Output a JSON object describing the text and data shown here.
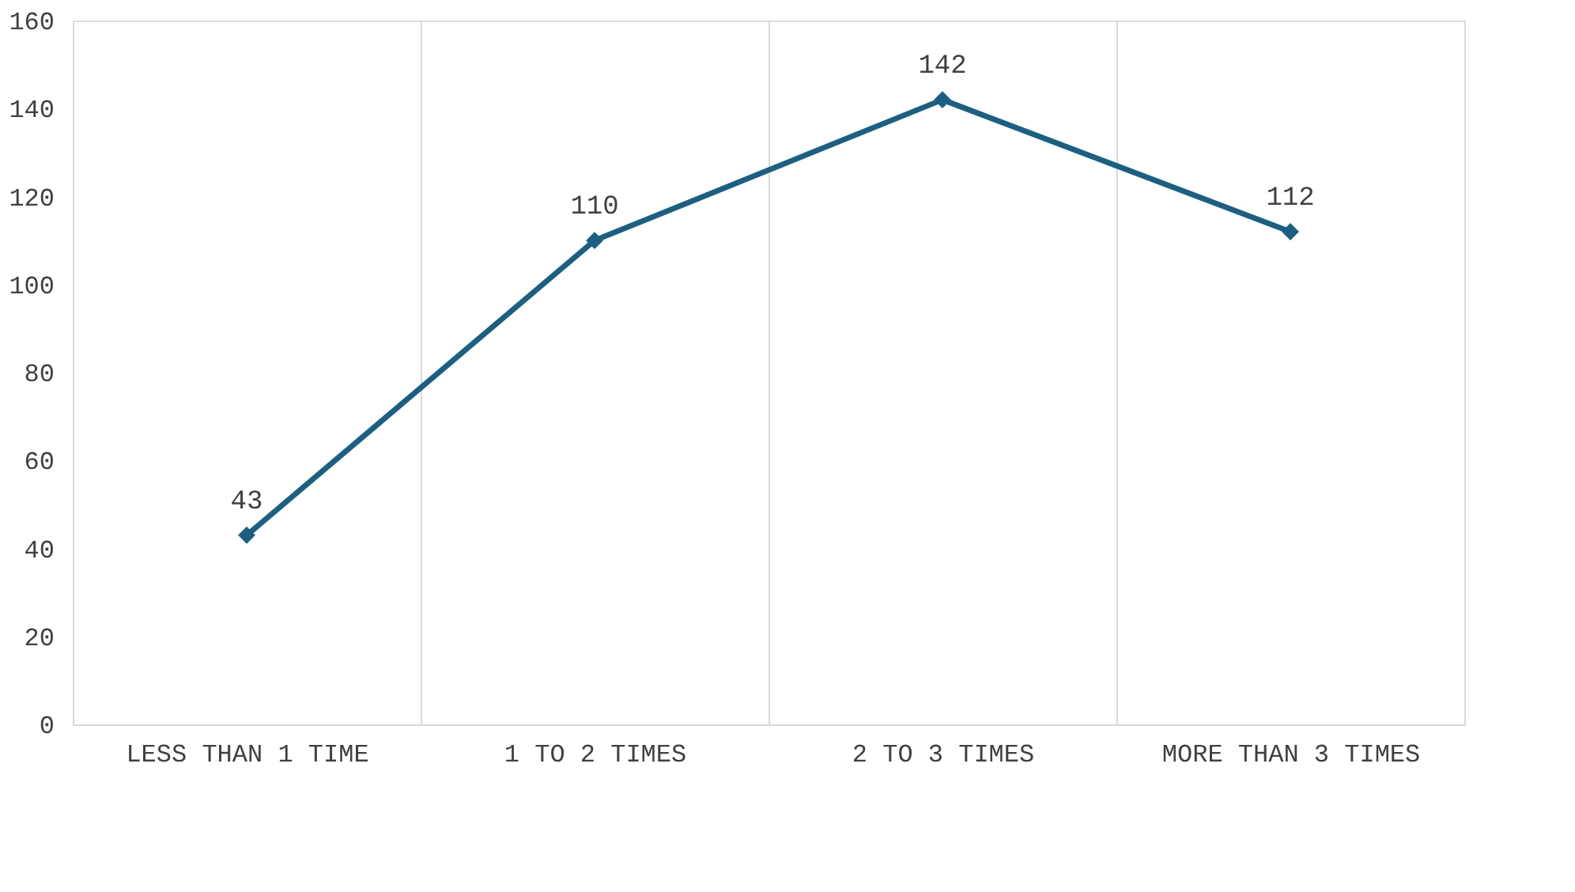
{
  "chart_data": {
    "type": "line",
    "categories": [
      "LESS THAN 1 TIME",
      "1 TO 2 TIMES",
      "2 TO 3 TIMES",
      "MORE THAN 3 TIMES"
    ],
    "series": [
      {
        "color": "#1d5f80",
        "values": [
          43,
          110,
          142,
          112
        ]
      }
    ],
    "ylim": [
      0,
      160
    ],
    "yticks": [
      0,
      20,
      40,
      60,
      80,
      100,
      120,
      140,
      160
    ],
    "grid": "x",
    "marker": "diamond",
    "line_style": "solid",
    "data_labels": true
  }
}
